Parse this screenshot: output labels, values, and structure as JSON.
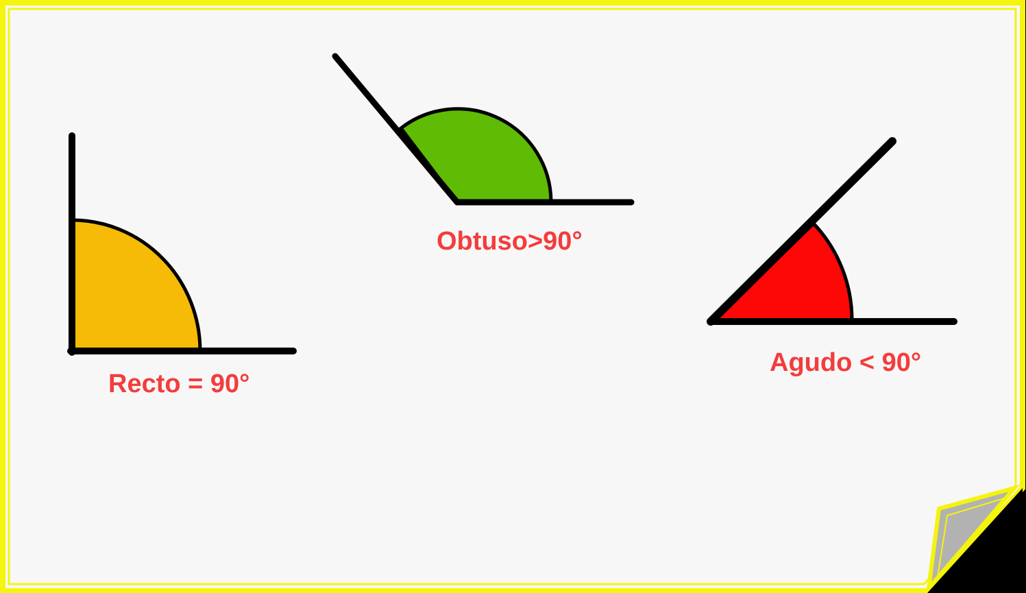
{
  "colors": {
    "border": "#f4f40c",
    "paper": "#f7f7f7",
    "stroke": "#000000",
    "right_fill": "#f6bb06",
    "obtuse_fill": "#60bb04",
    "acute_fill": "#fd0707",
    "label": "#f43c3c",
    "curl": "#b2b2b2"
  },
  "angles": [
    {
      "key": "right",
      "label": "Recto = 90°",
      "fill_color": "#f6bb06"
    },
    {
      "key": "obtuse",
      "label": "Obtuso>90°",
      "fill_color": "#60bb04"
    },
    {
      "key": "acute",
      "label": "Agudo < 90°",
      "fill_color": "#fd0707"
    }
  ]
}
